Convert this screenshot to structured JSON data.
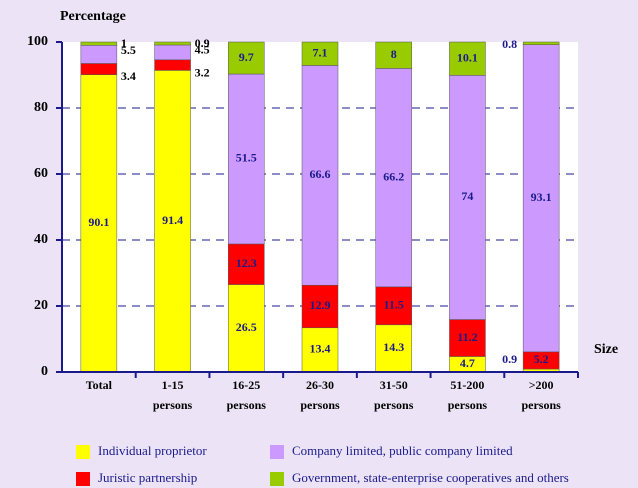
{
  "chart_data": {
    "type": "bar",
    "stacked": true,
    "y_label": "Percentage",
    "x_label": "Size",
    "categories": [
      "Total",
      "1-15 persons",
      "16-25 persons",
      "26-30 persons",
      "31-50 persons",
      "51-200 persons",
      ">200 persons"
    ],
    "series": [
      {
        "name": "Individual proprietor",
        "color": "#ffff00",
        "values": [
          90.1,
          91.4,
          26.5,
          13.4,
          14.3,
          4.7,
          0.9
        ]
      },
      {
        "name": "Juristic partnership",
        "color": "#ff0000",
        "values": [
          3.4,
          3.2,
          12.3,
          12.9,
          11.5,
          11.2,
          5.2
        ]
      },
      {
        "name": "Company limited, public company limited",
        "color": "#cc99ff",
        "values": [
          5.5,
          4.5,
          51.5,
          66.6,
          66.2,
          74.0,
          93.1
        ]
      },
      {
        "name": "Government, state-enterprise cooperatives and others",
        "color": "#99cc00",
        "values": [
          1.0,
          0.9,
          9.7,
          7.1,
          8.0,
          10.1,
          0.8
        ]
      }
    ],
    "ylim": [
      0,
      100
    ],
    "yticks": [
      0,
      20,
      40,
      60,
      80,
      100
    ],
    "grid": true
  }
}
